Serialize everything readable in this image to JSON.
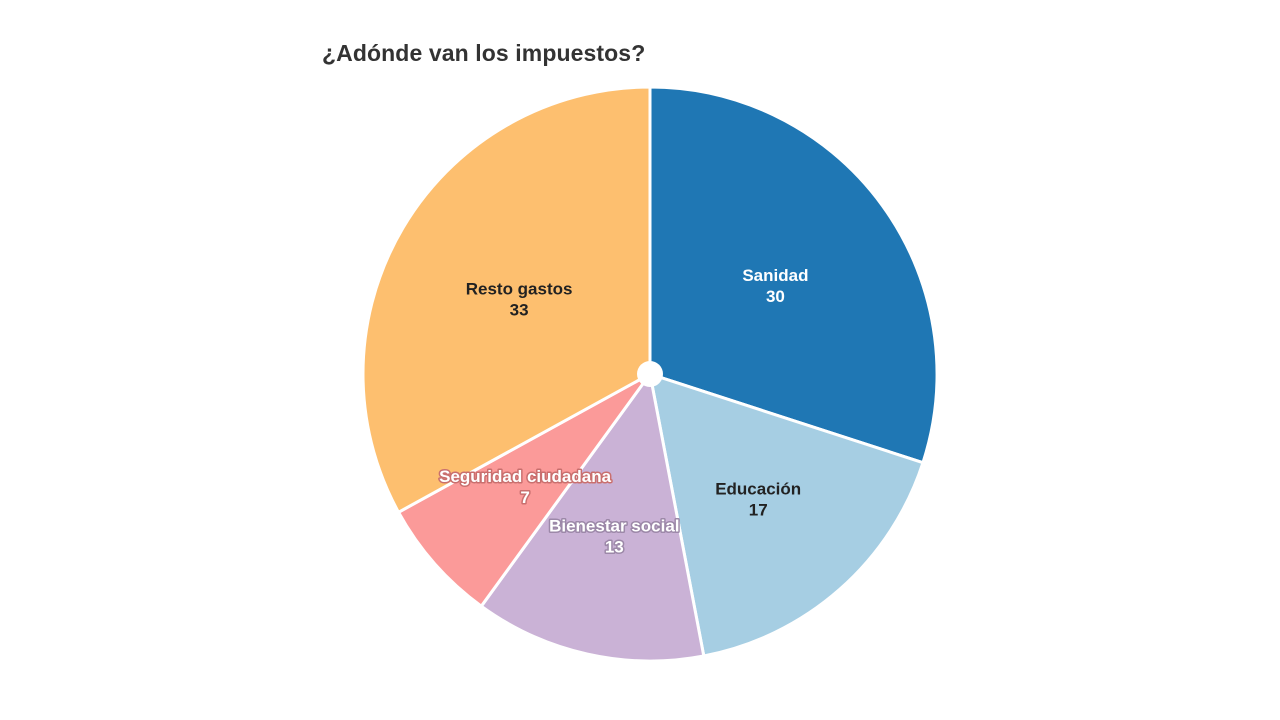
{
  "chart_data": {
    "type": "pie",
    "title": "¿Adónde van los impuestos?",
    "slices": [
      {
        "label": "Sanidad",
        "value": 30,
        "color": "#1f77b4",
        "label_color": "#ffffff",
        "label_stroke": "none"
      },
      {
        "label": "Educación",
        "value": 17,
        "color": "#a6cee3",
        "label_color": "#222222",
        "label_stroke": "none"
      },
      {
        "label": "Bienestar social",
        "value": 13,
        "color": "#cab2d6",
        "label_color": "#ffffff",
        "label_stroke": "#9c88a8"
      },
      {
        "label": "Seguridad ciudadana",
        "value": 7,
        "color": "#fb9a99",
        "label_color": "#ffffff",
        "label_stroke": "#c96f6e"
      },
      {
        "label": "Resto gastos",
        "value": 33,
        "color": "#fdbf6f",
        "label_color": "#222222",
        "label_stroke": "none"
      }
    ],
    "legend": "none"
  }
}
